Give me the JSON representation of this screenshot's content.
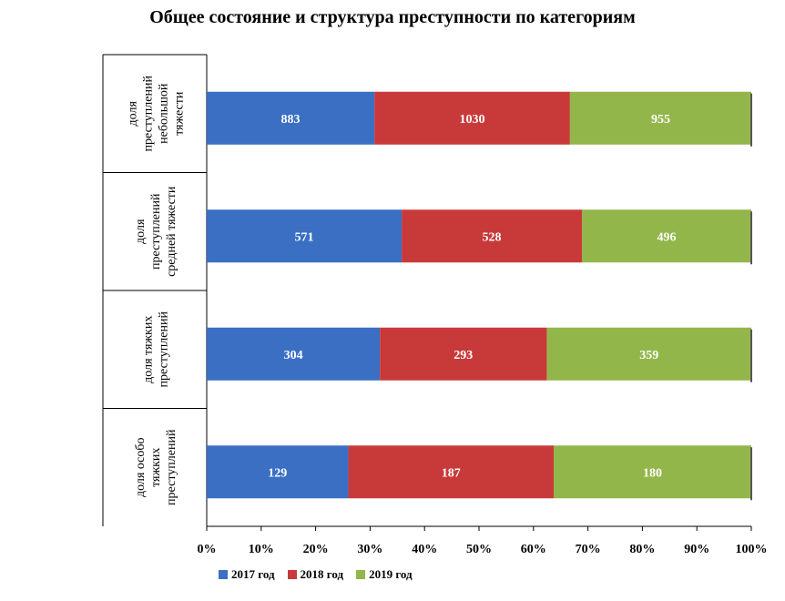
{
  "chart_data": {
    "type": "bar",
    "orientation": "horizontal",
    "stacking": "percent",
    "title": "Общее состояние и структура преступности по категориям",
    "categories": [
      "доля преступлений небольшой тяжести",
      "доля преступлений средней тяжести",
      "доля тяжких преступлений",
      "доля особо тяжких преступлений"
    ],
    "category_lines": [
      [
        "доля",
        "преступлений",
        "небольшой",
        "тяжести"
      ],
      [
        "доля",
        "преступлений",
        "средней тяжести"
      ],
      [
        "доля тяжких",
        "преступлений"
      ],
      [
        "доля особо",
        "тяжких",
        "преступлений"
      ]
    ],
    "series": [
      {
        "name": "2017 год",
        "color": "#3a6fc4",
        "values": [
          883,
          571,
          304,
          129
        ]
      },
      {
        "name": "2018 год",
        "color": "#c83a3a",
        "values": [
          1030,
          528,
          293,
          187
        ]
      },
      {
        "name": "2019 год",
        "color": "#92b64a",
        "values": [
          955,
          496,
          359,
          180
        ]
      }
    ],
    "x_ticks": [
      "0%",
      "10%",
      "20%",
      "30%",
      "40%",
      "50%",
      "60%",
      "70%",
      "80%",
      "90%",
      "100%"
    ],
    "xlim": [
      0,
      100
    ],
    "grid": false,
    "legend_position": "bottom"
  }
}
